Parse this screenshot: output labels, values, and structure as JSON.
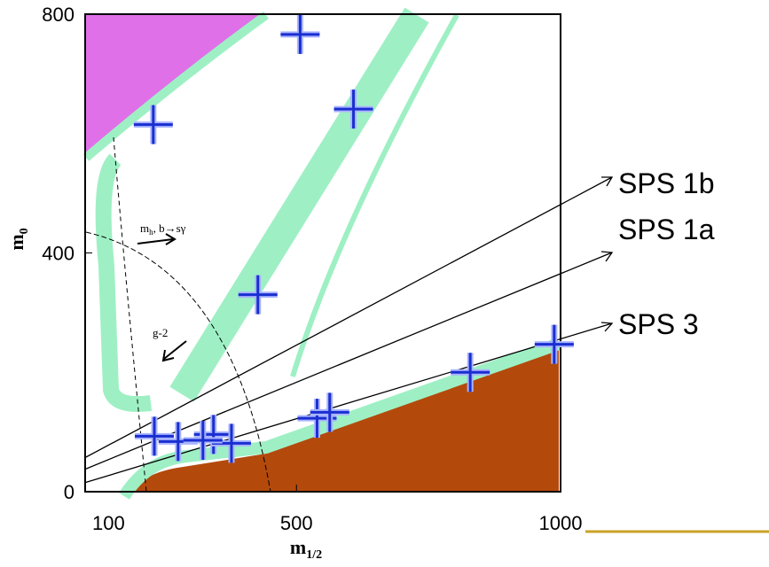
{
  "chart_data": {
    "type": "scatter",
    "xlabel": {
      "base": "m",
      "sub": "1/2"
    },
    "ylabel": {
      "base": "m",
      "sub": "0"
    },
    "xlim": [
      100,
      1000
    ],
    "ylim": [
      0,
      800
    ],
    "xticks": [
      100,
      500,
      1000
    ],
    "yticks": [
      0,
      400,
      800
    ],
    "series": [
      {
        "name": null,
        "color": "#1a2fd0",
        "x": [
          229,
          507,
          608,
          427,
          231,
          276,
          343,
          377,
          323,
          539,
          563,
          829,
          988
        ],
        "values": [
          615,
          766,
          641,
          330,
          93,
          84,
          96,
          81,
          86,
          123,
          133,
          200,
          247
        ]
      }
    ],
    "annotations": [
      "SPS 1b",
      "SPS 1a",
      "SPS 3"
    ],
    "region_labels": [
      {
        "base": "m",
        "sub": "h",
        "rest": ", b→sγ"
      },
      {
        "base": "g-2"
      }
    ]
  }
}
